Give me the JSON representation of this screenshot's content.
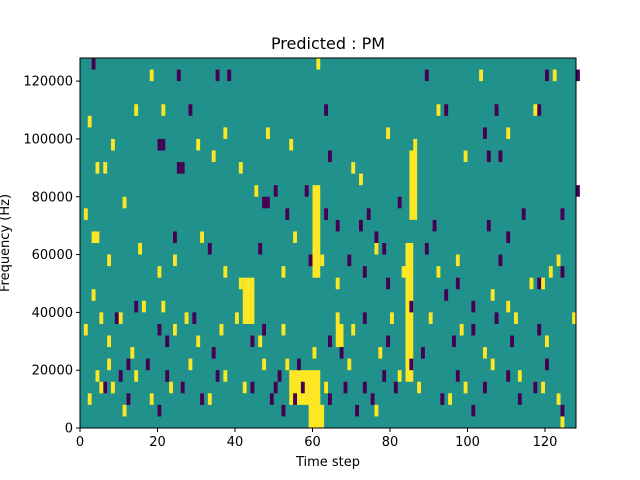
{
  "chart_data": {
    "type": "heatmap",
    "title": "Predicted : PM",
    "xlabel": "Time step",
    "ylabel": "Frequency (Hz)",
    "xlim": [
      0,
      128
    ],
    "ylim": [
      0,
      128000
    ],
    "x_ticks": [
      0,
      20,
      40,
      60,
      80,
      100,
      120
    ],
    "y_ticks": [
      0,
      20000,
      40000,
      60000,
      80000,
      100000,
      120000
    ],
    "x_tick_labels": [
      "0",
      "20",
      "40",
      "60",
      "80",
      "100",
      "120"
    ],
    "y_tick_labels": [
      "0",
      "20000",
      "40000",
      "60000",
      "80000",
      "100000",
      "120000"
    ],
    "grid": false,
    "legend": "none",
    "colors": {
      "background": "#21918c",
      "low": "#440154",
      "high": "#fde725"
    },
    "bin_height": 4000,
    "bin_width": 1,
    "dark_cells": [
      [
        3,
        124000
      ],
      [
        25,
        120000
      ],
      [
        35,
        120000
      ],
      [
        38,
        120000
      ],
      [
        89,
        120000
      ],
      [
        120,
        120000
      ],
      [
        128,
        120000
      ],
      [
        28,
        108000
      ],
      [
        63,
        108000
      ],
      [
        94,
        108000
      ],
      [
        107,
        108000
      ],
      [
        118,
        108000
      ],
      [
        64,
        92000
      ],
      [
        105,
        92000
      ],
      [
        108,
        92000
      ],
      [
        104,
        100000
      ],
      [
        20,
        96000
      ],
      [
        21,
        96000
      ],
      [
        25,
        88000
      ],
      [
        26,
        88000
      ],
      [
        47,
        76000
      ],
      [
        48,
        76000
      ],
      [
        50,
        80000
      ],
      [
        53,
        72000
      ],
      [
        58,
        80000
      ],
      [
        63,
        72000
      ],
      [
        66,
        68000
      ],
      [
        72,
        68000
      ],
      [
        74,
        72000
      ],
      [
        76,
        64000
      ],
      [
        78,
        60000
      ],
      [
        82,
        76000
      ],
      [
        89,
        60000
      ],
      [
        91,
        68000
      ],
      [
        105,
        68000
      ],
      [
        110,
        64000
      ],
      [
        114,
        72000
      ],
      [
        124,
        72000
      ],
      [
        128,
        80000
      ],
      [
        24,
        64000
      ],
      [
        33,
        60000
      ],
      [
        46,
        60000
      ],
      [
        59,
        56000
      ],
      [
        69,
        56000
      ],
      [
        73,
        52000
      ],
      [
        79,
        48000
      ],
      [
        85,
        40000
      ],
      [
        94,
        44000
      ],
      [
        97,
        48000
      ],
      [
        101,
        40000
      ],
      [
        108,
        56000
      ],
      [
        118,
        48000
      ],
      [
        124,
        52000
      ],
      [
        9,
        36000
      ],
      [
        14,
        40000
      ],
      [
        20,
        32000
      ],
      [
        22,
        28000
      ],
      [
        29,
        36000
      ],
      [
        34,
        24000
      ],
      [
        44,
        28000
      ],
      [
        47,
        32000
      ],
      [
        56,
        20000
      ],
      [
        64,
        28000
      ],
      [
        67,
        24000
      ],
      [
        73,
        36000
      ],
      [
        79,
        28000
      ],
      [
        88,
        24000
      ],
      [
        96,
        28000
      ],
      [
        101,
        32000
      ],
      [
        107,
        36000
      ],
      [
        111,
        28000
      ],
      [
        118,
        32000
      ],
      [
        10,
        16000
      ],
      [
        12,
        20000
      ],
      [
        22,
        16000
      ],
      [
        26,
        12000
      ],
      [
        31,
        8000
      ],
      [
        35,
        16000
      ],
      [
        44,
        12000
      ],
      [
        49,
        8000
      ],
      [
        50,
        12000
      ],
      [
        51,
        16000
      ],
      [
        52,
        4000
      ],
      [
        55,
        8000
      ],
      [
        57,
        12000
      ],
      [
        64,
        8000
      ],
      [
        68,
        12000
      ],
      [
        71,
        4000
      ],
      [
        73,
        12000
      ],
      [
        75,
        8000
      ],
      [
        78,
        16000
      ],
      [
        81,
        12000
      ],
      [
        85,
        20000
      ],
      [
        93,
        8000
      ],
      [
        97,
        16000
      ],
      [
        101,
        4000
      ],
      [
        104,
        12000
      ],
      [
        110,
        16000
      ],
      [
        113,
        8000
      ],
      [
        117,
        12000
      ],
      [
        120,
        20000
      ],
      [
        124,
        4000
      ],
      [
        6,
        12000
      ],
      [
        12,
        8000
      ],
      [
        17,
        20000
      ],
      [
        20,
        4000
      ]
    ],
    "bright_cells": [
      [
        2,
        104000
      ],
      [
        4,
        88000
      ],
      [
        6,
        88000
      ],
      [
        8,
        96000
      ],
      [
        11,
        76000
      ],
      [
        14,
        108000
      ],
      [
        18,
        120000
      ],
      [
        21,
        108000
      ],
      [
        30,
        96000
      ],
      [
        34,
        92000
      ],
      [
        37,
        100000
      ],
      [
        41,
        88000
      ],
      [
        45,
        80000
      ],
      [
        48,
        100000
      ],
      [
        54,
        96000
      ],
      [
        61,
        124000
      ],
      [
        70,
        88000
      ],
      [
        72,
        84000
      ],
      [
        79,
        100000
      ],
      [
        86,
        96000
      ],
      [
        92,
        108000
      ],
      [
        99,
        92000
      ],
      [
        103,
        120000
      ],
      [
        110,
        100000
      ],
      [
        117,
        108000
      ],
      [
        122,
        120000
      ],
      [
        1,
        72000
      ],
      [
        3,
        64000
      ],
      [
        4,
        64000
      ],
      [
        7,
        56000
      ],
      [
        15,
        60000
      ],
      [
        20,
        52000
      ],
      [
        24,
        56000
      ],
      [
        31,
        64000
      ],
      [
        37,
        52000
      ],
      [
        41,
        48000
      ],
      [
        52,
        52000
      ],
      [
        55,
        64000
      ],
      [
        62,
        56000
      ],
      [
        66,
        48000
      ],
      [
        76,
        60000
      ],
      [
        83,
        52000
      ],
      [
        92,
        52000
      ],
      [
        97,
        56000
      ],
      [
        106,
        44000
      ],
      [
        110,
        40000
      ],
      [
        116,
        48000
      ],
      [
        119,
        48000
      ],
      [
        121,
        52000
      ],
      [
        123,
        56000
      ],
      [
        127,
        36000
      ],
      [
        1,
        32000
      ],
      [
        3,
        44000
      ],
      [
        5,
        36000
      ],
      [
        7,
        28000
      ],
      [
        10,
        36000
      ],
      [
        13,
        24000
      ],
      [
        16,
        40000
      ],
      [
        21,
        40000
      ],
      [
        24,
        32000
      ],
      [
        27,
        36000
      ],
      [
        30,
        28000
      ],
      [
        36,
        32000
      ],
      [
        40,
        36000
      ],
      [
        43,
        40000
      ],
      [
        46,
        28000
      ],
      [
        52,
        32000
      ],
      [
        60,
        24000
      ],
      [
        66,
        36000
      ],
      [
        70,
        32000
      ],
      [
        77,
        24000
      ],
      [
        80,
        36000
      ],
      [
        90,
        36000
      ],
      [
        98,
        32000
      ],
      [
        104,
        24000
      ],
      [
        112,
        36000
      ],
      [
        120,
        28000
      ],
      [
        2,
        8000
      ],
      [
        4,
        16000
      ],
      [
        5,
        12000
      ],
      [
        7,
        20000
      ],
      [
        8,
        12000
      ],
      [
        11,
        4000
      ],
      [
        14,
        16000
      ],
      [
        18,
        8000
      ],
      [
        23,
        12000
      ],
      [
        28,
        20000
      ],
      [
        33,
        8000
      ],
      [
        37,
        16000
      ],
      [
        42,
        12000
      ],
      [
        47,
        20000
      ],
      [
        53,
        20000
      ],
      [
        58,
        16000
      ],
      [
        61,
        8000
      ],
      [
        63,
        12000
      ],
      [
        69,
        20000
      ],
      [
        76,
        4000
      ],
      [
        82,
        16000
      ],
      [
        87,
        12000
      ],
      [
        95,
        8000
      ],
      [
        99,
        12000
      ],
      [
        106,
        20000
      ],
      [
        113,
        16000
      ],
      [
        119,
        12000
      ],
      [
        123,
        8000
      ],
      [
        124,
        0
      ]
    ],
    "bright_clusters": [
      {
        "x": [
          60,
          62
        ],
        "y": [
          52000,
          84000
        ]
      },
      {
        "x": [
          84,
          86
        ],
        "y": [
          16000,
          64000
        ]
      },
      {
        "x": [
          85,
          87
        ],
        "y": [
          72000,
          96000
        ]
      },
      {
        "x": [
          66,
          68
        ],
        "y": [
          28000,
          36000
        ]
      },
      {
        "x": [
          54,
          62
        ],
        "y": [
          8000,
          20000
        ]
      },
      {
        "x": [
          59,
          63
        ],
        "y": [
          0,
          8000
        ]
      },
      {
        "x": [
          42,
          45
        ],
        "y": [
          36000,
          52000
        ]
      }
    ]
  }
}
